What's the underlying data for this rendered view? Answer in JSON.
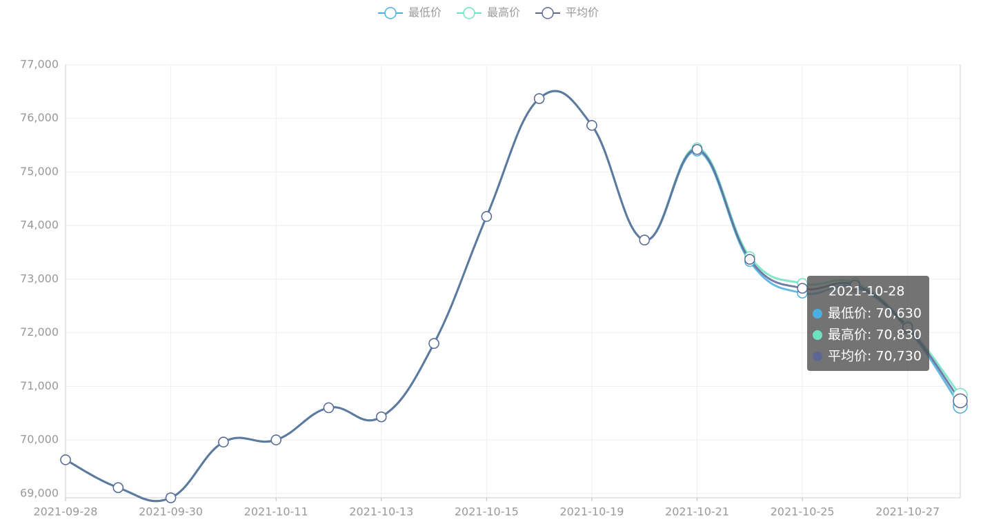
{
  "chart_data": {
    "type": "line",
    "categories": [
      "2021-09-28",
      null,
      "2021-09-30",
      null,
      "2021-10-11",
      null,
      "2021-10-13",
      null,
      "2021-10-15",
      null,
      "2021-10-19",
      null,
      "2021-10-21",
      null,
      "2021-10-25",
      null,
      "2021-10-27",
      null
    ],
    "series": [
      {
        "name": "最低价",
        "color": "#4aaee0",
        "values": [
          69630,
          69110,
          68920,
          69960,
          70000,
          70600,
          70430,
          71800,
          74170,
          76370,
          75870,
          73730,
          75390,
          73330,
          72740,
          72850,
          72070,
          70630
        ]
      },
      {
        "name": "最高价",
        "color": "#6ee3c2",
        "values": [
          69630,
          69110,
          68920,
          69960,
          70000,
          70600,
          70430,
          71800,
          74170,
          76370,
          75870,
          73730,
          75450,
          73420,
          72920,
          72930,
          72130,
          70830
        ]
      },
      {
        "name": "平均价",
        "color": "#5c6795",
        "values": [
          69630,
          69110,
          68920,
          69960,
          70000,
          70600,
          70430,
          71800,
          74170,
          76370,
          75870,
          73730,
          75420,
          73370,
          72830,
          72890,
          72100,
          70730
        ]
      }
    ],
    "ylim": [
      68920,
      77000
    ],
    "yticks": [
      {
        "value": 69000,
        "label": "69,000"
      },
      {
        "value": 70000,
        "label": "70,000"
      },
      {
        "value": 71000,
        "label": "71,000"
      },
      {
        "value": 72000,
        "label": "72,000"
      },
      {
        "value": 73000,
        "label": "73,000"
      },
      {
        "value": 74000,
        "label": "74,000"
      },
      {
        "value": 75000,
        "label": "75,000"
      },
      {
        "value": 76000,
        "label": "76,000"
      },
      {
        "value": 77000,
        "label": "77,000"
      }
    ],
    "grid": true,
    "legend": "top",
    "tooltip": {
      "title": "2021-10-28",
      "items": [
        "最低价: 70,630",
        "最高价: 70,830",
        "平均价: 70,730"
      ]
    }
  }
}
